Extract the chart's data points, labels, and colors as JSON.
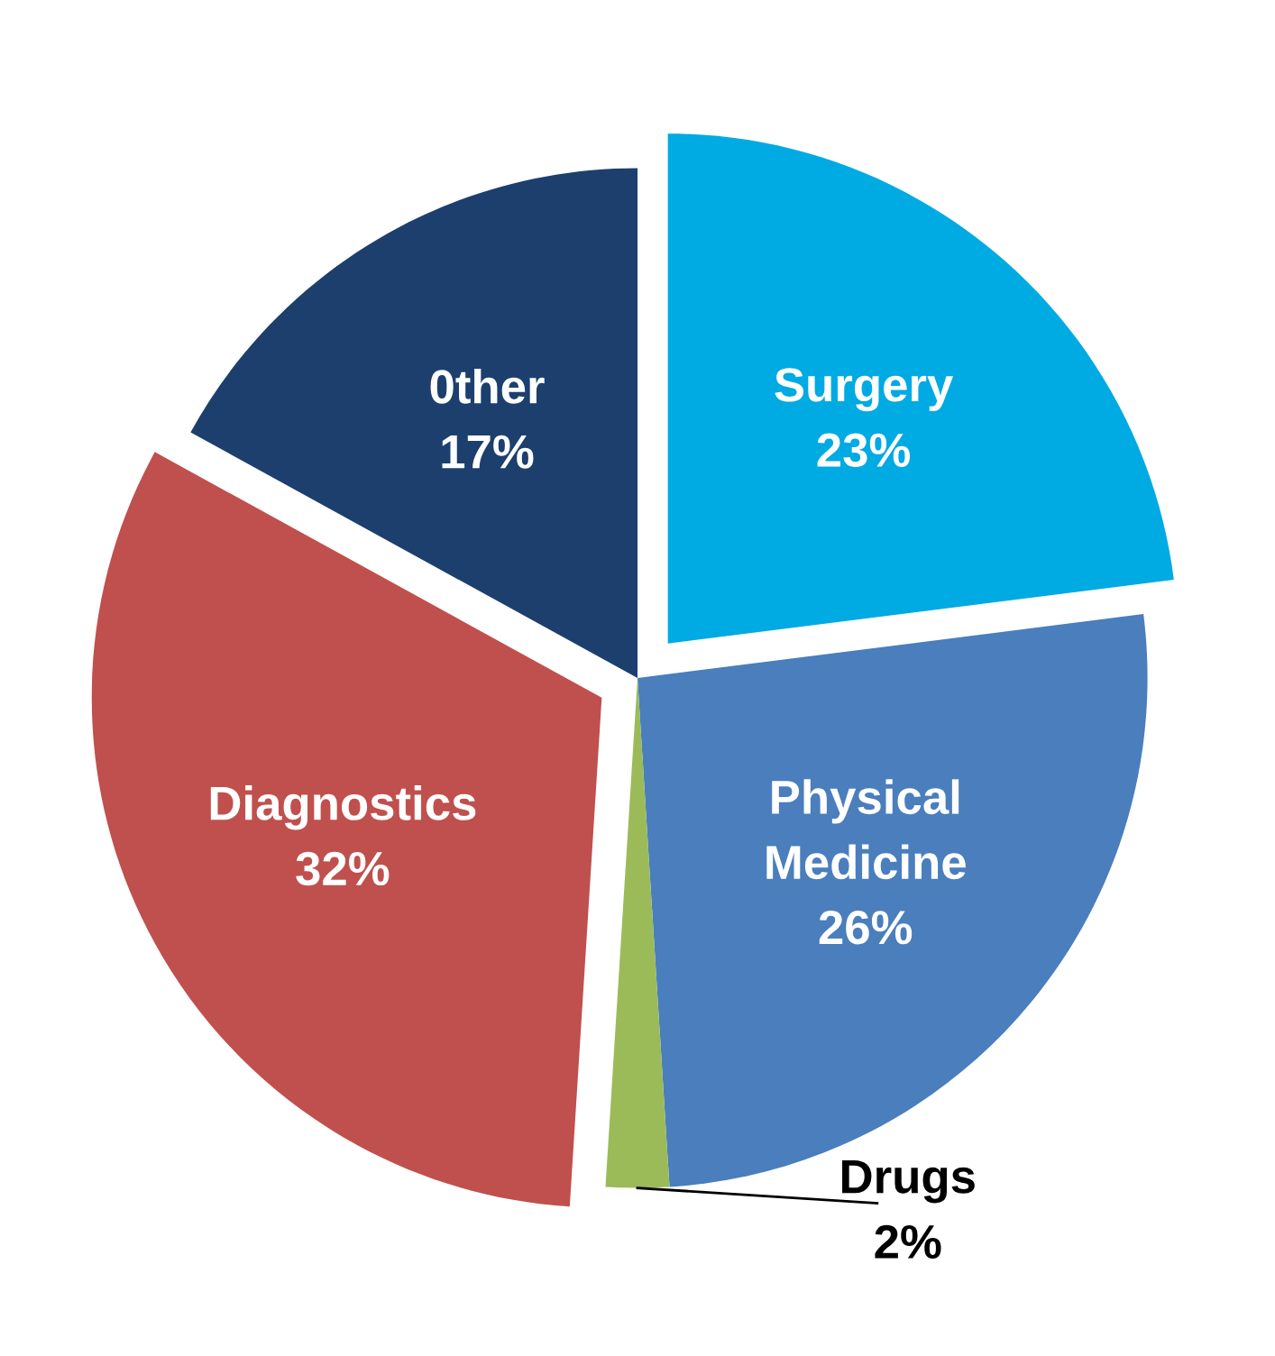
{
  "chart_data": {
    "type": "pie",
    "categories": [
      "Surgery",
      "Physical\nMedicine",
      "Drugs",
      "Diagnostics",
      "0ther"
    ],
    "values": [
      23,
      26,
      2,
      32,
      17
    ],
    "value_labels": [
      "23%",
      "26%",
      "2%",
      "32%",
      "17%"
    ],
    "colors": [
      "#00aae2",
      "#4a7ebd",
      "#9bbb59",
      "#c0504d",
      "#1c3f6e"
    ],
    "legend": false
  }
}
